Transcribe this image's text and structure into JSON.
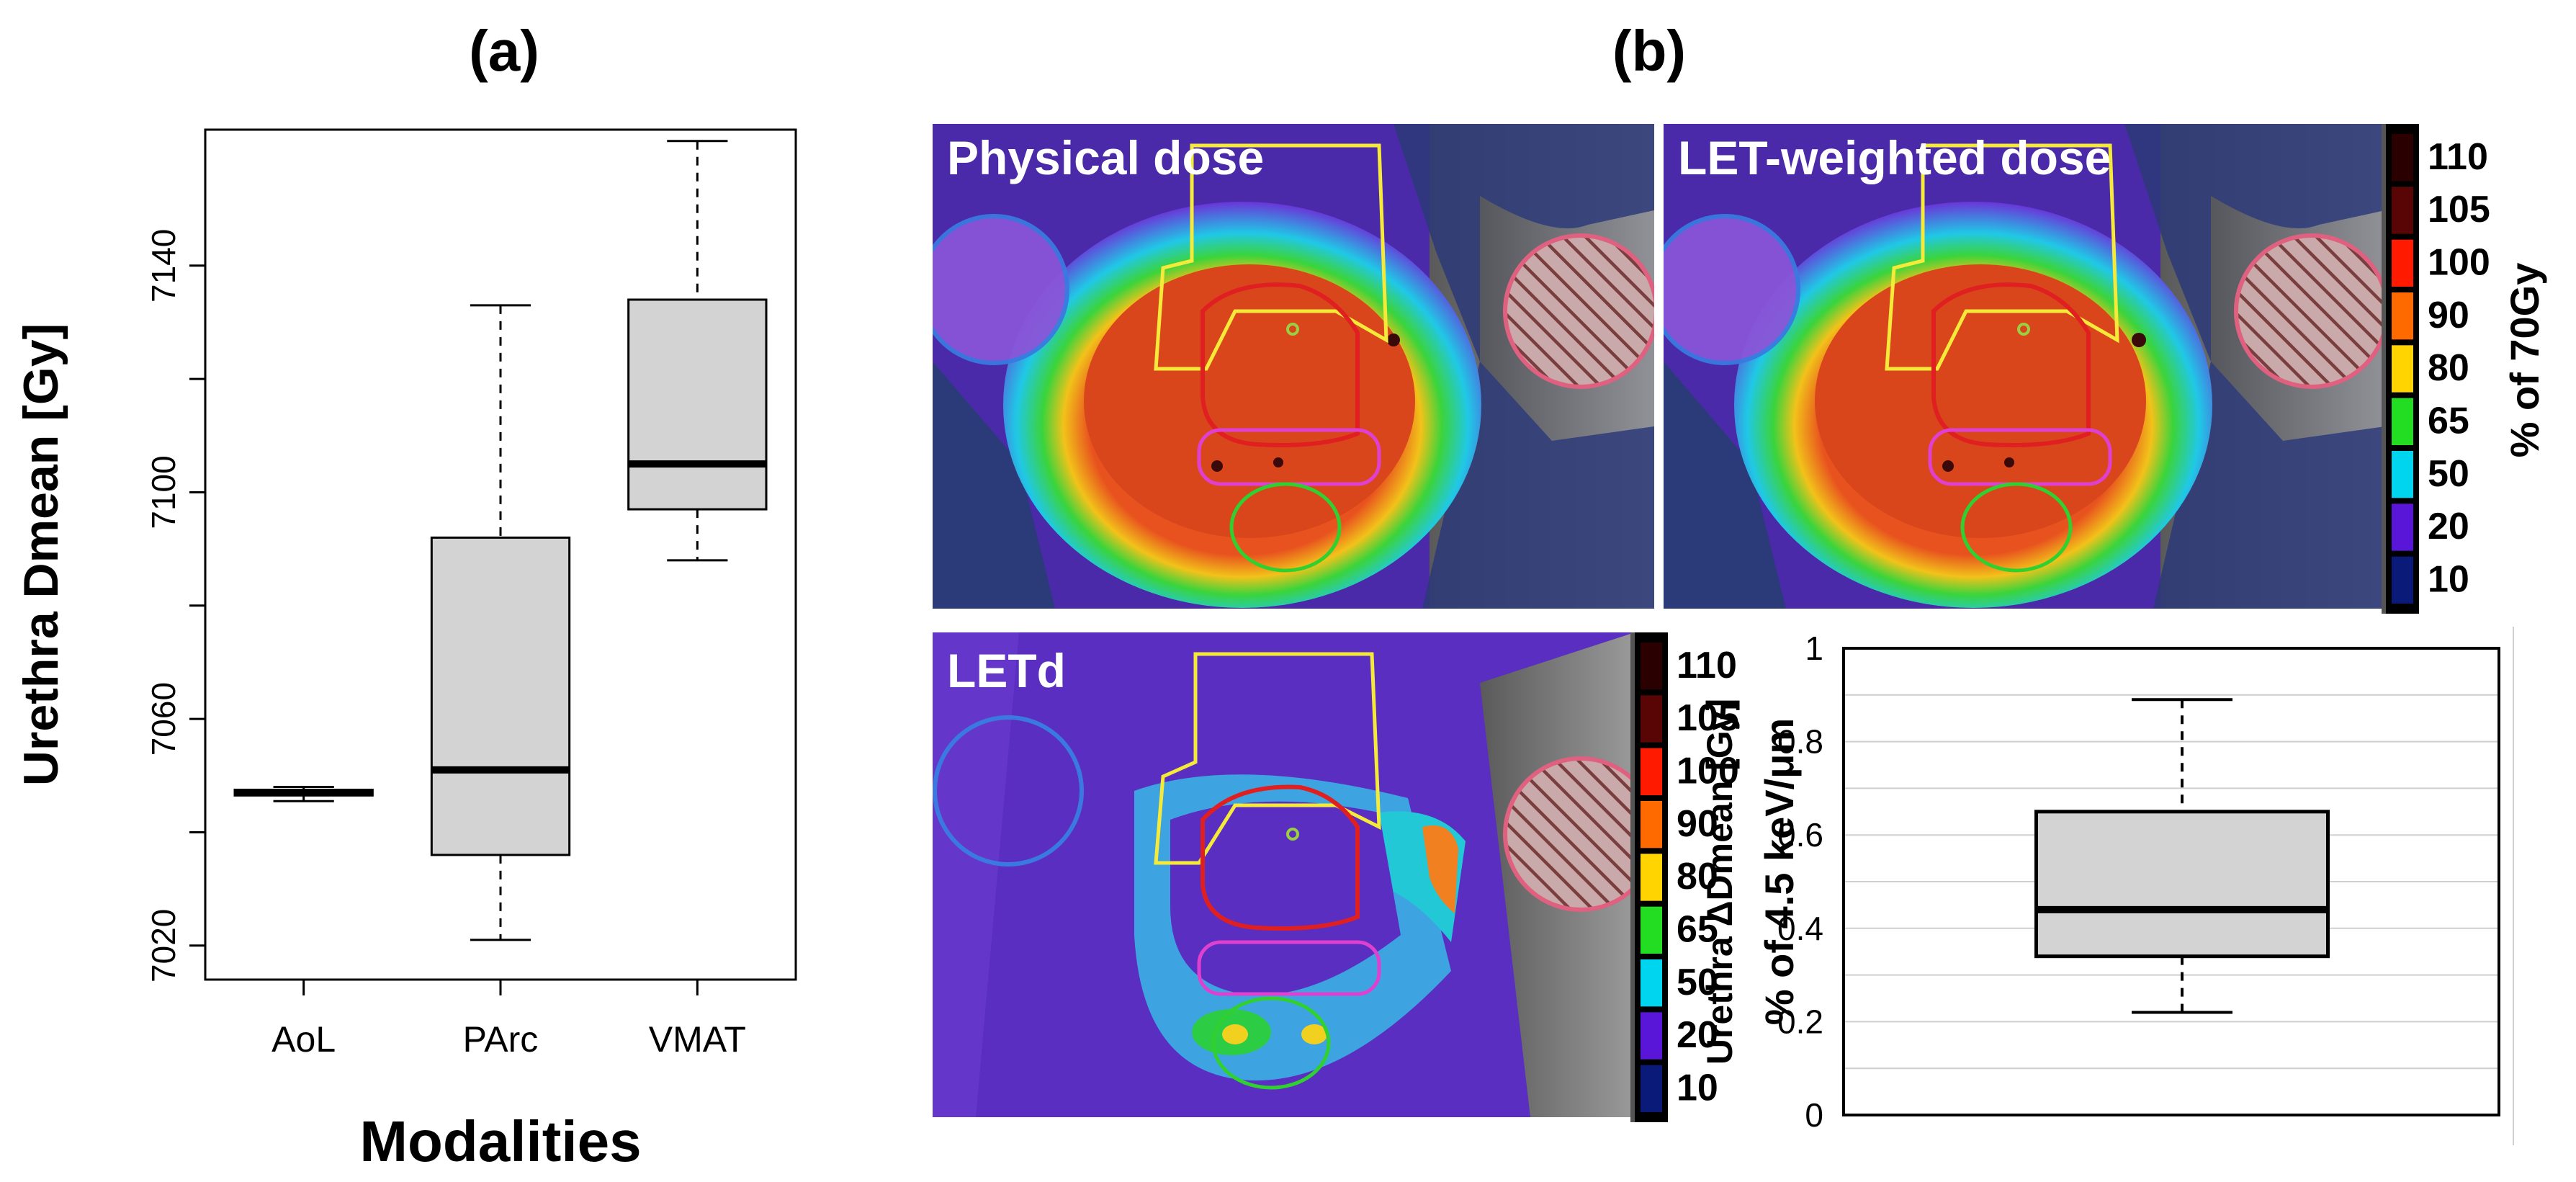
{
  "panel_a_label": "(a)",
  "panel_b_label": "(b)",
  "images": {
    "physical_dose_title": "Physical dose",
    "let_weighted_title": "LET-weighted dose",
    "letd_title": "LETd"
  },
  "colorbars": {
    "dose": {
      "label": "% of 70Gy",
      "ticks": [
        "110",
        "105",
        "100",
        "90",
        "80",
        "65",
        "50",
        "20",
        "10"
      ],
      "colors": [
        "#2a0000",
        "#5a0505",
        "#ff1a00",
        "#ff6a00",
        "#ffd400",
        "#22dd22",
        "#00d5f0",
        "#5a16d8",
        "#0a1a78"
      ]
    },
    "letd": {
      "label": "% of 4.5 keV/μm",
      "ticks": [
        "110",
        "105",
        "100",
        "90",
        "80",
        "65",
        "50",
        "20",
        "10"
      ],
      "colors": [
        "#2a0000",
        "#5a0505",
        "#ff1a00",
        "#ff6a00",
        "#ffd400",
        "#22dd22",
        "#00d5f0",
        "#5a16d8",
        "#0a1a78"
      ]
    }
  },
  "chart_data": [
    {
      "id": "a",
      "type": "boxplot",
      "title": "",
      "xlabel": "Modalities",
      "ylabel": "Urethra Dmean [Gy]",
      "categories": [
        "AoL",
        "PArc",
        "VMAT"
      ],
      "ylim": [
        7014,
        7164
      ],
      "yticks": [
        7020,
        7060,
        7100,
        7140
      ],
      "yticks_minor": [
        7040,
        7080,
        7120
      ],
      "boxes": [
        {
          "category": "AoL",
          "min": 7045.5,
          "q1": 7046.5,
          "median": 7047,
          "q3": 7047.5,
          "max": 7048
        },
        {
          "category": "PArc",
          "min": 7021,
          "q1": 7036,
          "median": 7051,
          "q3": 7092,
          "max": 7133
        },
        {
          "category": "VMAT",
          "min": 7088,
          "q1": 7097,
          "median": 7105,
          "q3": 7134,
          "max": 7162
        }
      ],
      "grid": false
    },
    {
      "id": "b-inset",
      "type": "boxplot",
      "title": "",
      "xlabel": "",
      "ylabel": "Urethra ΔDmean [Gy]",
      "categories": [
        ""
      ],
      "ylim": [
        0,
        1
      ],
      "yticks": [
        "0",
        "0.2",
        "0.4",
        "0.6",
        "0.8",
        "1"
      ],
      "boxes": [
        {
          "category": "",
          "min": 0.22,
          "q1": 0.34,
          "median": 0.44,
          "q3": 0.65,
          "max": 0.89
        }
      ],
      "grid": true
    }
  ]
}
